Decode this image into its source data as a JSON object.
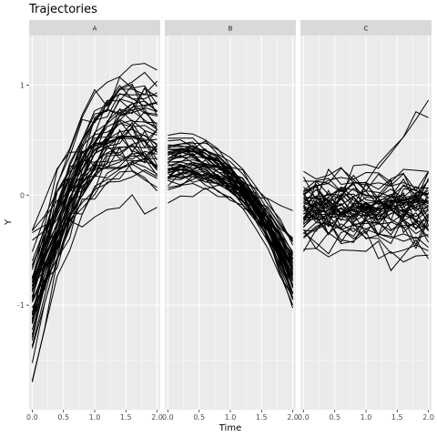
{
  "chart_data": {
    "type": "line",
    "title": "Trajectories",
    "xlabel": "Time",
    "ylabel": "Y",
    "facets": [
      "A",
      "B",
      "C"
    ],
    "xlim": [
      -0.05,
      2.05
    ],
    "ylim": [
      -1.95,
      1.45
    ],
    "x_ticks": [
      0.0,
      0.5,
      1.0,
      1.5,
      2.0
    ],
    "x_tick_labels": [
      "0.0",
      "0.5",
      "1.0",
      "1.5",
      "2.0"
    ],
    "y_ticks": [
      -1,
      0,
      1
    ],
    "y_tick_labels": [
      "-1",
      "0",
      "1"
    ],
    "x": [
      0.0,
      0.2,
      0.4,
      0.6,
      0.8,
      1.0,
      1.2,
      1.4,
      1.6,
      1.8,
      2.0
    ],
    "panel_background": "#ebebeb",
    "strip_background": "#d9d9d9",
    "grid_color": "#ffffff",
    "line_color": "#000000",
    "grid": true,
    "legend": "none",
    "series_per_facet": 50,
    "generator_note": "series values are reproduced by the script as smooth noisy trajectories within each facet's ranges"
  }
}
